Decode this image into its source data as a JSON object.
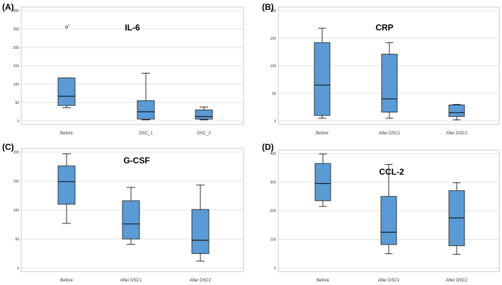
{
  "chart_data": [
    {
      "panel": "(A)",
      "title": "IL-6",
      "type": "boxplot",
      "ylim": [
        0,
        300
      ],
      "yticks": [
        0,
        50,
        100,
        150,
        200,
        250,
        300
      ],
      "categories": [
        "Before",
        "DSC_1",
        "DSC_2"
      ],
      "boxes": [
        {
          "min": 36,
          "q1": 42,
          "median": 67,
          "q3": 117,
          "max": 117
        },
        {
          "min": 3,
          "q1": 5,
          "median": 25,
          "q3": 55,
          "max": 130
        },
        {
          "min": 3,
          "q1": 5,
          "median": 12,
          "q3": 30,
          "max": 38
        }
      ],
      "outliers": [
        {
          "category": 0,
          "value": 255,
          "label": "1"
        }
      ]
    },
    {
      "panel": "(B)",
      "title": "CRP",
      "type": "boxplot",
      "ylim": [
        0,
        200
      ],
      "yticks": [
        0,
        50,
        100,
        150,
        200
      ],
      "categories": [
        "Before",
        "After DSC1",
        "After DSC2"
      ],
      "boxes": [
        {
          "min": 5,
          "q1": 10,
          "median": 65,
          "q3": 142,
          "max": 168
        },
        {
          "min": 5,
          "q1": 16,
          "median": 40,
          "q3": 121,
          "max": 142
        },
        {
          "min": 2,
          "q1": 8,
          "median": 15,
          "q3": 29,
          "max": 30
        }
      ],
      "outliers": []
    },
    {
      "panel": "(C)",
      "title": "G-CSF",
      "type": "boxplot",
      "ylim": [
        0,
        200
      ],
      "yticks": [
        0,
        50,
        100,
        150,
        200
      ],
      "categories": [
        "Before",
        "After DSC1",
        "After DSC2"
      ],
      "boxes": [
        {
          "min": 77,
          "q1": 110,
          "median": 149,
          "q3": 176,
          "max": 197
        },
        {
          "min": 41,
          "q1": 50,
          "median": 76,
          "q3": 116,
          "max": 139
        },
        {
          "min": 12,
          "q1": 25,
          "median": 48,
          "q3": 101,
          "max": 143
        }
      ],
      "outliers": []
    },
    {
      "panel": "(D)",
      "title": "CCL-2",
      "type": "boxplot",
      "ylim": [
        0,
        400
      ],
      "yticks": [
        0,
        100,
        200,
        300,
        400
      ],
      "categories": [
        "Before",
        "After DSC1",
        "After DSC2"
      ],
      "boxes": [
        {
          "min": 215,
          "q1": 235,
          "median": 295,
          "q3": 365,
          "max": 398
        },
        {
          "min": 50,
          "q1": 82,
          "median": 125,
          "q3": 250,
          "max": 362
        },
        {
          "min": 48,
          "q1": 78,
          "median": 175,
          "q3": 270,
          "max": 298
        }
      ],
      "outliers": []
    }
  ]
}
